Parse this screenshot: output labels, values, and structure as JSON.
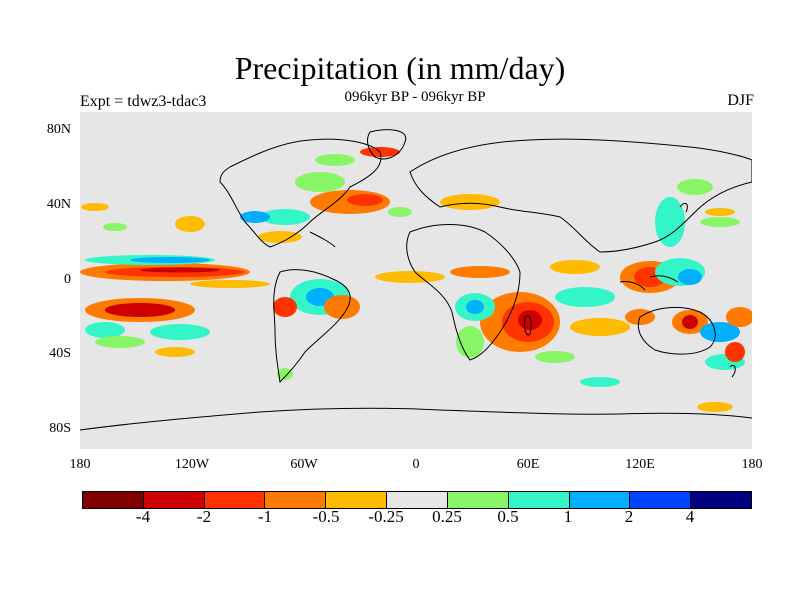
{
  "title": "Precipitation (in mm/day)",
  "subtitle": "096kyr BP - 096kyr BP",
  "left_label": "Expt = tdwz3-tdac3",
  "right_label": "DJF",
  "lat_labels": [
    "80N",
    "40N",
    "0",
    "40S",
    "80S"
  ],
  "lon_labels": [
    "180",
    "120W",
    "60W",
    "0",
    "60E",
    "120E",
    "180"
  ],
  "colorbar": {
    "colors": [
      "#800000",
      "#cc0000",
      "#ff3300",
      "#ff7a00",
      "#ffbb00",
      "#e6e6e6",
      "#88f566",
      "#33f5c8",
      "#00b0ff",
      "#0044ff",
      "#000080"
    ],
    "labels": [
      "-4",
      "-2",
      "-1",
      "-0.5",
      "-0.25",
      "0.25",
      "0.5",
      "1",
      "2",
      "4"
    ]
  }
}
